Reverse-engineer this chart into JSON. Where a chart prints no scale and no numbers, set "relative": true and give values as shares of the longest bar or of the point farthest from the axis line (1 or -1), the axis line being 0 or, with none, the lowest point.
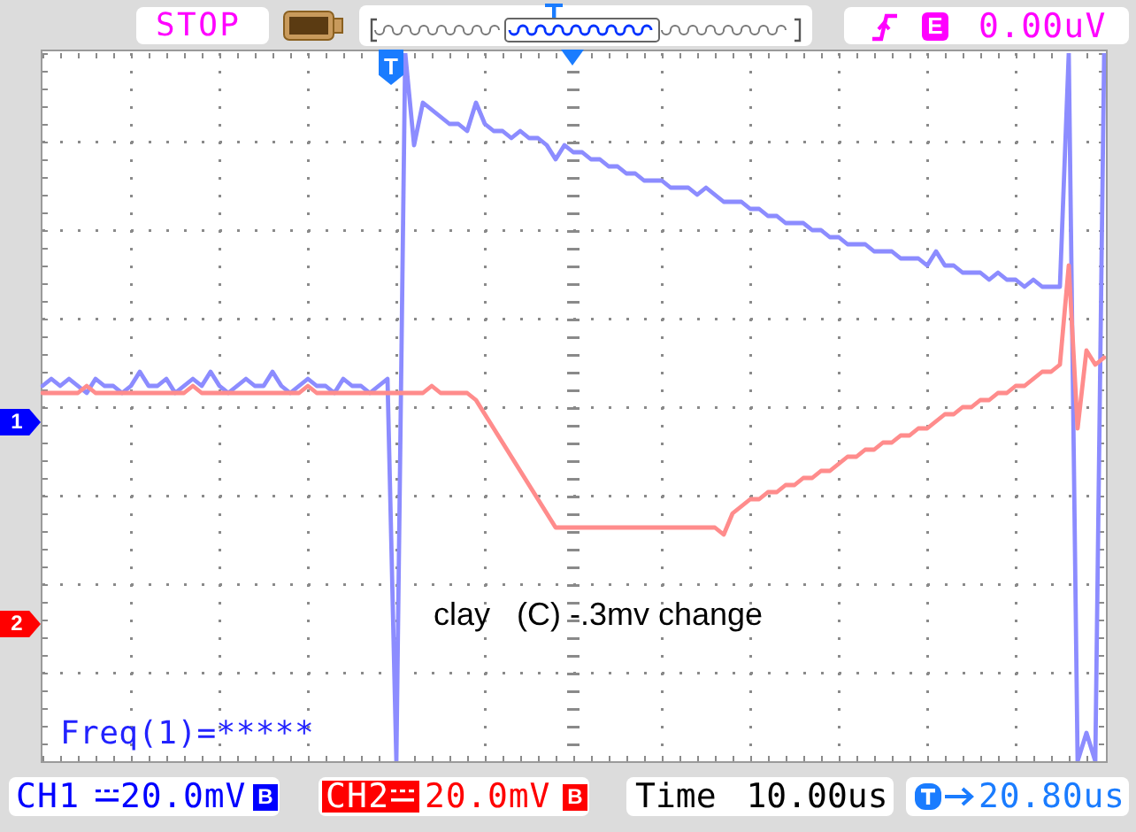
{
  "chart_data": {
    "type": "line",
    "relative": true,
    "grid": true,
    "categories": [
      null,
      null,
      null,
      null,
      null,
      null,
      null,
      null,
      null,
      null,
      null,
      null,
      null,
      null,
      null,
      null,
      null,
      null,
      null,
      null,
      null,
      null,
      null,
      null,
      null,
      null,
      null,
      null,
      null,
      null,
      null,
      null,
      null,
      null,
      null,
      null,
      null,
      null,
      null,
      null,
      null,
      null,
      null,
      null,
      null,
      null,
      null,
      null,
      null,
      null,
      null,
      null,
      null,
      null,
      null,
      null,
      null,
      null,
      null,
      null,
      null,
      null,
      null,
      null,
      null,
      null,
      null,
      null,
      null,
      null,
      null,
      null,
      null,
      null,
      null,
      null,
      null,
      null,
      null,
      null,
      null,
      null,
      null,
      null,
      null,
      null,
      null,
      null,
      null,
      null,
      null,
      null,
      null,
      null,
      null,
      null,
      null,
      null,
      null,
      null,
      null,
      null,
      null,
      null,
      null,
      null,
      null,
      null,
      null,
      null,
      null,
      null,
      null,
      null,
      null,
      null,
      null,
      null,
      null,
      null,
      null
    ],
    "series": [
      {
        "color": "#8c8cff",
        "values": [
          0.53,
          0.54,
          0.53,
          0.54,
          0.53,
          0.52,
          0.54,
          0.53,
          0.53,
          0.52,
          0.53,
          0.55,
          0.53,
          0.53,
          0.54,
          0.52,
          0.53,
          0.54,
          0.53,
          0.55,
          0.53,
          0.52,
          0.53,
          0.54,
          0.53,
          0.53,
          0.55,
          0.53,
          0.52,
          0.53,
          0.54,
          0.53,
          0.53,
          0.52,
          0.54,
          0.53,
          0.53,
          0.52,
          0.53,
          0.54,
          0,
          1,
          0.87,
          0.93,
          0.92,
          0.91,
          0.9,
          0.9,
          0.89,
          0.93,
          0.9,
          0.89,
          0.89,
          0.88,
          0.89,
          0.88,
          0.88,
          0.87,
          0.85,
          0.87,
          0.86,
          0.86,
          0.85,
          0.85,
          0.84,
          0.84,
          0.83,
          0.83,
          0.82,
          0.82,
          0.82,
          0.81,
          0.81,
          0.81,
          0.8,
          0.81,
          0.8,
          0.79,
          0.79,
          0.79,
          0.78,
          0.78,
          0.77,
          0.77,
          0.76,
          0.76,
          0.76,
          0.75,
          0.75,
          0.74,
          0.74,
          0.73,
          0.73,
          0.73,
          0.72,
          0.72,
          0.72,
          0.71,
          0.71,
          0.71,
          0.7,
          0.72,
          0.7,
          0.7,
          0.69,
          0.69,
          0.69,
          0.68,
          0.69,
          0.68,
          0.68,
          0.67,
          0.68,
          0.67,
          0.67,
          0.67,
          1,
          0,
          0.04,
          0,
          1
        ]
      },
      {
        "color": "#ff8c8c",
        "values": [
          0.52,
          0.52,
          0.52,
          0.52,
          0.52,
          0.53,
          0.52,
          0.52,
          0.52,
          0.52,
          0.52,
          0.52,
          0.52,
          0.52,
          0.52,
          0.52,
          0.52,
          0.53,
          0.52,
          0.52,
          0.52,
          0.52,
          0.52,
          0.52,
          0.52,
          0.52,
          0.52,
          0.52,
          0.52,
          0.52,
          0.53,
          0.52,
          0.52,
          0.52,
          0.52,
          0.52,
          0.52,
          0.52,
          0.52,
          0.52,
          0.52,
          0.52,
          0.52,
          0.52,
          0.53,
          0.52,
          0.52,
          0.52,
          0.52,
          0.51,
          0.49,
          0.47,
          0.45,
          0.43,
          0.41,
          0.39,
          0.37,
          0.35,
          0.33,
          0.33,
          0.33,
          0.33,
          0.33,
          0.33,
          0.33,
          0.33,
          0.33,
          0.33,
          0.33,
          0.33,
          0.33,
          0.33,
          0.33,
          0.33,
          0.33,
          0.33,
          0.33,
          0.32,
          0.35,
          0.36,
          0.37,
          0.37,
          0.38,
          0.38,
          0.39,
          0.39,
          0.4,
          0.4,
          0.41,
          0.41,
          0.42,
          0.43,
          0.43,
          0.44,
          0.44,
          0.45,
          0.45,
          0.46,
          0.46,
          0.47,
          0.47,
          0.48,
          0.49,
          0.49,
          0.5,
          0.5,
          0.51,
          0.51,
          0.52,
          0.52,
          0.53,
          0.53,
          0.54,
          0.55,
          0.55,
          0.56,
          0.7,
          0.47,
          0.58,
          0.56,
          0.57
        ]
      }
    ],
    "annotations": [
      "STOP",
      "E",
      "0.00uV",
      "T",
      "1",
      "2",
      "Freq(1)=*****",
      "clay   (C) -.3mv change",
      "CH1",
      "20.0mV",
      "B",
      "CH2",
      "20.0mV",
      "B",
      "Time 10.00us",
      "20.80us"
    ]
  }
}
